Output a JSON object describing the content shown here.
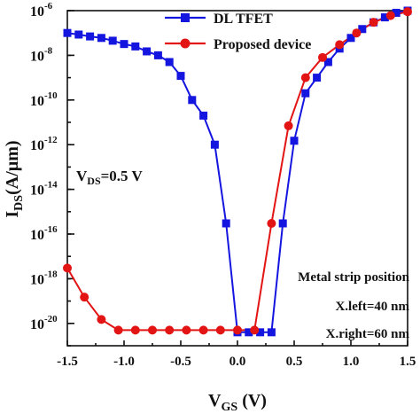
{
  "chart_data": {
    "type": "line",
    "yscale": "log",
    "xlim": [
      -1.5,
      1.5
    ],
    "ylim_exponent": [
      -21,
      -6
    ],
    "xlabel": {
      "main": "V",
      "sub": "GS",
      "unit": " (V)"
    },
    "ylabel": {
      "main": "I",
      "sub": "DS",
      "unit": "(A/µm)"
    },
    "x_ticks": [
      {
        "v": -1.5,
        "label": "-1.5"
      },
      {
        "v": -1.0,
        "label": "-1.0"
      },
      {
        "v": -0.5,
        "label": "-0.5"
      },
      {
        "v": 0.0,
        "label": "0.0"
      },
      {
        "v": 0.5,
        "label": "0.5"
      },
      {
        "v": 1.0,
        "label": "1.0"
      },
      {
        "v": 1.5,
        "label": "1.5"
      }
    ],
    "y_ticks": [
      {
        "exp": -6,
        "base": "10",
        "sup": "-6"
      },
      {
        "exp": -8,
        "base": "10",
        "sup": "-8"
      },
      {
        "exp": -10,
        "base": "10",
        "sup": "-10"
      },
      {
        "exp": -12,
        "base": "10",
        "sup": "-12"
      },
      {
        "exp": -14,
        "base": "10",
        "sup": "-14"
      },
      {
        "exp": -16,
        "base": "10",
        "sup": "-16"
      },
      {
        "exp": -18,
        "base": "10",
        "sup": "-18"
      },
      {
        "exp": -20,
        "base": "10",
        "sup": "-20"
      }
    ],
    "legend_position": "top-center",
    "series": [
      {
        "name": "DL TFET",
        "color": "#1515e0",
        "marker": "square",
        "x": [
          -1.5,
          -1.4,
          -1.3,
          -1.2,
          -1.1,
          -1.0,
          -0.9,
          -0.8,
          -0.7,
          -0.6,
          -0.5,
          -0.4,
          -0.3,
          -0.2,
          -0.1,
          0.0,
          0.1,
          0.2,
          0.3,
          0.4,
          0.5,
          0.6,
          0.7,
          0.8,
          0.9,
          1.0,
          1.1,
          1.2,
          1.3,
          1.4,
          1.5
        ],
        "y": [
          1e-07,
          8.5e-08,
          7e-08,
          6e-08,
          4.5e-08,
          3.2e-08,
          2.5e-08,
          1.5e-08,
          1e-08,
          5e-09,
          1.2e-09,
          1e-10,
          2e-11,
          1e-12,
          3e-16,
          4e-21,
          4e-21,
          4e-21,
          4e-21,
          3e-16,
          1.5e-12,
          2e-10,
          1e-09,
          5e-09,
          2e-08,
          6e-08,
          1.5e-07,
          3e-07,
          5e-07,
          8e-07,
          1e-06
        ]
      },
      {
        "name": "Proposed device",
        "color": "#e31414",
        "marker": "circle",
        "x": [
          -1.5,
          -1.35,
          -1.2,
          -1.05,
          -0.9,
          -0.75,
          -0.6,
          -0.45,
          -0.3,
          -0.15,
          0.0,
          0.15,
          0.3,
          0.45,
          0.6,
          0.75,
          0.9,
          1.05,
          1.2,
          1.35,
          1.5
        ],
        "y": [
          3e-18,
          1.5e-19,
          1.5e-20,
          5e-21,
          5e-21,
          5e-21,
          5e-21,
          5e-21,
          5e-21,
          5e-21,
          5e-21,
          5e-21,
          3e-16,
          7e-12,
          1e-09,
          8e-09,
          3e-08,
          1e-07,
          3e-07,
          6e-07,
          9e-07
        ]
      }
    ],
    "annotations": {
      "vds": {
        "main": "V",
        "sub": "DS",
        "value": "=0.5 V"
      },
      "metal_strip": [
        "Metal strip position",
        "X.left=40 nm",
        "X.right=60 nm"
      ]
    }
  }
}
